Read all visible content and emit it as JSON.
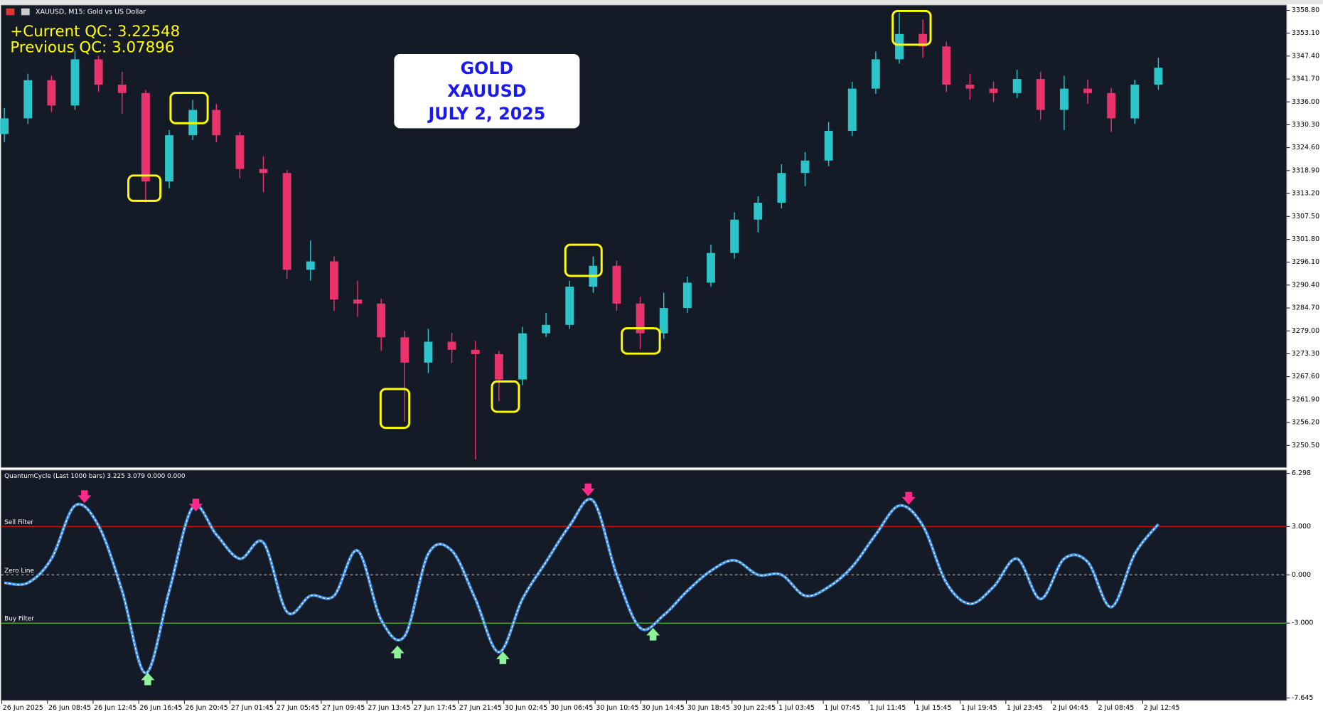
{
  "chart_data": [
    {
      "type": "candlestick",
      "title": "XAUUSD, M15:  Gold vs US Dollar",
      "annotations": [
        "+Current QC: 3.22548",
        "Previous QC: 3.07896"
      ],
      "box_lines": [
        "GOLD",
        "XAUUSD",
        "JULY 2, 2025"
      ],
      "up_color": "#2cc3c9",
      "down_color": "#e8336d",
      "open": [
        3328.0,
        3331.9,
        3341.4,
        3335.1,
        3346.6,
        3340.3,
        3338.2,
        3316.2,
        3327.7,
        3334.0,
        3327.7,
        3319.3,
        3318.3,
        3294.2,
        3296.3,
        3286.8,
        3285.8,
        3277.4,
        3271.1,
        3276.3,
        3274.3,
        3273.2,
        3266.9,
        3278.4,
        3280.5,
        3290.0,
        3295.2,
        3285.8,
        3278.4,
        3284.7,
        3291.0,
        3298.4,
        3306.7,
        3310.9,
        3318.3,
        3321.4,
        3328.8,
        3339.3,
        3346.6,
        3352.9,
        3349.8,
        3340.3,
        3339.3,
        3338.2,
        3341.7,
        3334.0,
        3339.3,
        3338.2,
        3331.9,
        3340.3
      ],
      "high": [
        3334.5,
        3343.0,
        3342.5,
        3348.7,
        3347.5,
        3343.5,
        3339.0,
        3329.0,
        3336.5,
        3335.5,
        3328.5,
        3322.5,
        3319.0,
        3301.5,
        3297.5,
        3291.5,
        3287.0,
        3279.0,
        3279.5,
        3278.5,
        3276.5,
        3274.0,
        3280.0,
        3283.5,
        3291.5,
        3297.5,
        3296.5,
        3287.5,
        3288.5,
        3292.5,
        3300.5,
        3308.5,
        3312.5,
        3320.5,
        3323.5,
        3331.0,
        3341.0,
        3348.5,
        3358.2,
        3356.5,
        3351.0,
        3343.0,
        3341.0,
        3344.0,
        3343.5,
        3342.5,
        3341.5,
        3339.5,
        3341.5,
        3347.0
      ],
      "low": [
        3326.0,
        3330.5,
        3333.5,
        3334.0,
        3338.5,
        3333.0,
        3310.9,
        3314.5,
        3326.5,
        3326.0,
        3317.0,
        3313.5,
        3292.0,
        3291.5,
        3284.0,
        3282.5,
        3274.0,
        3256.4,
        3268.5,
        3271.0,
        3247.0,
        3261.5,
        3265.5,
        3277.5,
        3279.5,
        3288.5,
        3284.0,
        3274.5,
        3277.0,
        3283.5,
        3290.0,
        3297.0,
        3303.5,
        3309.5,
        3315.0,
        3320.0,
        3327.5,
        3338.0,
        3345.5,
        3347.0,
        3338.5,
        3336.5,
        3336.0,
        3337.0,
        3331.5,
        3329.0,
        3335.5,
        3328.5,
        3330.5,
        3339.0
      ],
      "close": [
        3331.9,
        3341.4,
        3335.1,
        3346.6,
        3340.3,
        3338.2,
        3316.2,
        3327.7,
        3334.0,
        3327.7,
        3319.3,
        3318.3,
        3294.2,
        3296.3,
        3286.8,
        3285.8,
        3277.4,
        3271.1,
        3276.3,
        3274.3,
        3273.2,
        3266.9,
        3278.4,
        3280.5,
        3290.0,
        3295.2,
        3285.8,
        3278.4,
        3284.7,
        3291.0,
        3298.4,
        3306.7,
        3310.9,
        3318.3,
        3321.4,
        3328.8,
        3339.3,
        3346.6,
        3352.9,
        3349.8,
        3340.3,
        3339.3,
        3338.2,
        3341.7,
        3334.0,
        3339.3,
        3338.2,
        3331.9,
        3340.3,
        3344.5
      ],
      "ylim": [
        3245.2,
        3360.1
      ],
      "yticks": [
        {
          "value": 3358.8,
          "label": "3358.80"
        },
        {
          "value": 3353.1,
          "label": "3353.10"
        },
        {
          "value": 3347.4,
          "label": "3347.40"
        },
        {
          "value": 3341.7,
          "label": "3341.70"
        },
        {
          "value": 3336.0,
          "label": "3336.00"
        },
        {
          "value": 3330.3,
          "label": "3330.30"
        },
        {
          "value": 3324.6,
          "label": "3324.60"
        },
        {
          "value": 3318.9,
          "label": "3318.90"
        },
        {
          "value": 3313.2,
          "label": "3313.20"
        },
        {
          "value": 3307.5,
          "label": "3307.50"
        },
        {
          "value": 3301.8,
          "label": "3301.80"
        },
        {
          "value": 3296.1,
          "label": "3296.10"
        },
        {
          "value": 3290.4,
          "label": "3290.40"
        },
        {
          "value": 3284.7,
          "label": "3284.70"
        },
        {
          "value": 3279.0,
          "label": "3279.00"
        },
        {
          "value": 3273.3,
          "label": "3273.30"
        },
        {
          "value": 3267.6,
          "label": "3267.60"
        },
        {
          "value": 3261.9,
          "label": "3261.90"
        },
        {
          "value": 3256.2,
          "label": "3256.20"
        },
        {
          "value": 3250.5,
          "label": "3250.50"
        }
      ]
    },
    {
      "type": "line",
      "title": "QuantumCycle (Last 1000 bars) 3.225 3.079 0.000 0.000",
      "color": "#3d8ee0",
      "values": [
        -0.5,
        -0.5,
        1.0,
        4.3,
        3.05,
        -1.0,
        -6.1,
        -1.0,
        4.2,
        2.5,
        1.0,
        2.0,
        -2.3,
        -1.3,
        -1.3,
        1.5,
        -2.8,
        -3.8,
        1.3,
        1.5,
        -1.5,
        -4.8,
        -1.5,
        0.8,
        3.05,
        4.6,
        0,
        -3.3,
        -2.5,
        -1.0,
        0.25,
        0.9,
        0,
        0,
        -1.3,
        -0.75,
        0.5,
        2.5,
        4.3,
        3.05,
        -0.5,
        -1.8,
        -0.75,
        1.0,
        -1.5,
        1.0,
        0.8,
        -2.0,
        1.3,
        3.15
      ],
      "levels": [
        {
          "name": "Sell Filter",
          "value": 3,
          "color": "#cc1111"
        },
        {
          "name": "Zero Line",
          "value": 0,
          "color": "#aaaaaa"
        },
        {
          "name": "Buy Filter",
          "value": -3,
          "color": "#55cc33"
        }
      ],
      "ylim": [
        -7.645,
        6.298
      ],
      "yticks": [
        {
          "value": 6.298,
          "label": "6.298"
        },
        {
          "value": 3,
          "label": "3.000"
        },
        {
          "value": 0,
          "label": "0.000"
        },
        {
          "value": -3,
          "label": "-3.000"
        },
        {
          "value": -7.645,
          "label": "-7.645"
        }
      ],
      "time_labels": [
        "26 Jun 2025",
        "26 Jun 08:45",
        "26 Jun 12:45",
        "26 Jun 16:45",
        "26 Jun 20:45",
        "27 Jun 01:45",
        "27 Jun 05:45",
        "27 Jun 09:45",
        "27 Jun 13:45",
        "27 Jun 17:45",
        "27 Jun 21:45",
        "30 Jun 02:45",
        "30 Jun 06:45",
        "30 Jun 10:45",
        "30 Jun 14:45",
        "30 Jun 18:45",
        "30 Jun 22:45",
        "1 Jul 03:45",
        "1 Jul 07:45",
        "1 Jul 11:45",
        "1 Jul 15:45",
        "1 Jul 19:45",
        "1 Jul 23:45",
        "2 Jul 04:45",
        "2 Jul 08:45",
        "2 Jul 12:45"
      ]
    }
  ]
}
